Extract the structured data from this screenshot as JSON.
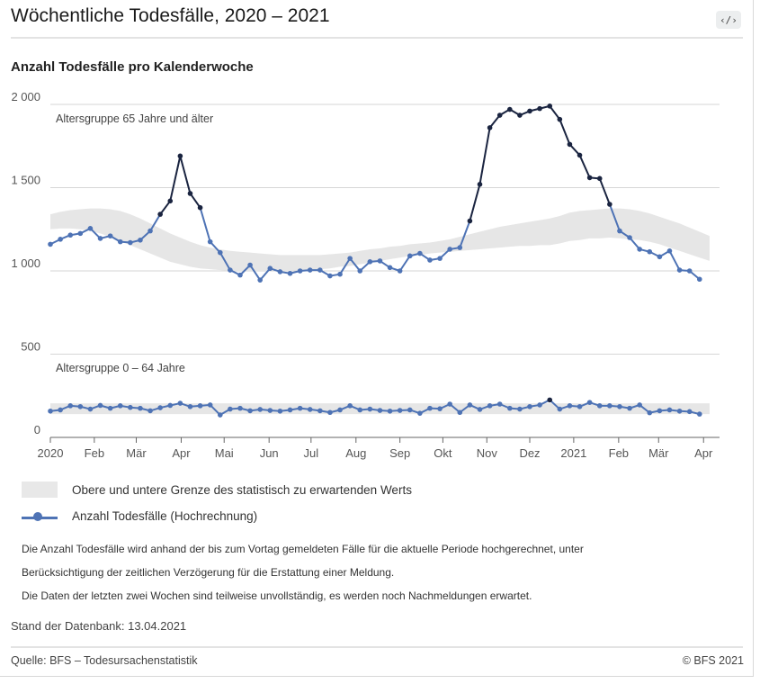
{
  "header": {
    "title": "Wöchentliche Todesfälle, 2020 – 2021",
    "embed_label": "‹/›"
  },
  "subtitle": "Anzahl Todesfälle pro Kalenderwoche",
  "chart_data": {
    "type": "line",
    "ylim": [
      0,
      2000
    ],
    "yticks": [
      0,
      500,
      1000,
      1500,
      2000
    ],
    "ytick_labels": [
      "0",
      "500",
      "1 000",
      "1 500",
      "2 000"
    ],
    "xlim": [
      0,
      67
    ],
    "xticks": [
      {
        "week": 0,
        "label": "2020"
      },
      {
        "week": 4.4,
        "label": "Feb"
      },
      {
        "week": 8.6,
        "label": "Mär"
      },
      {
        "week": 13.1,
        "label": "Apr"
      },
      {
        "week": 17.4,
        "label": "Mai"
      },
      {
        "week": 21.9,
        "label": "Jun"
      },
      {
        "week": 26.1,
        "label": "Jul"
      },
      {
        "week": 30.6,
        "label": "Aug"
      },
      {
        "week": 35,
        "label": "Sep"
      },
      {
        "week": 39.3,
        "label": "Okt"
      },
      {
        "week": 43.7,
        "label": "Nov"
      },
      {
        "week": 48,
        "label": "Dez"
      },
      {
        "week": 52.4,
        "label": "2021"
      },
      {
        "week": 56.9,
        "label": "Feb"
      },
      {
        "week": 60.9,
        "label": "Mär"
      },
      {
        "week": 65.4,
        "label": "Apr"
      }
    ],
    "series_labels": [
      "Altersgruppe 65 Jahre und älter",
      "Altersgruppe 0 – 64 Jahre"
    ],
    "series": [
      {
        "name": "Altersgruppe 65 Jahre und älter",
        "values": [
          1160,
          1190,
          1215,
          1225,
          1255,
          1195,
          1210,
          1175,
          1170,
          1185,
          1240,
          1340,
          1420,
          1690,
          1465,
          1380,
          1175,
          1110,
          1005,
          975,
          1035,
          945,
          1015,
          995,
          985,
          1000,
          1005,
          1005,
          970,
          980,
          1075,
          1000,
          1055,
          1060,
          1020,
          1000,
          1090,
          1105,
          1065,
          1075,
          1130,
          1140,
          1300,
          1520,
          1860,
          1935,
          1970,
          1935,
          1960,
          1975,
          1990,
          1910,
          1760,
          1695,
          1560,
          1555,
          1400,
          1240,
          1200,
          1130,
          1115,
          1085,
          1120,
          1005,
          1000,
          950
        ],
        "exceed": [
          false,
          false,
          false,
          false,
          false,
          false,
          false,
          false,
          false,
          false,
          false,
          true,
          true,
          true,
          true,
          true,
          false,
          false,
          false,
          false,
          false,
          false,
          false,
          false,
          false,
          false,
          false,
          false,
          false,
          false,
          false,
          false,
          false,
          false,
          false,
          false,
          false,
          false,
          false,
          false,
          false,
          false,
          true,
          true,
          true,
          true,
          true,
          true,
          true,
          true,
          true,
          true,
          true,
          true,
          true,
          true,
          true,
          false,
          false,
          false,
          false,
          false,
          false,
          false,
          false,
          false
        ],
        "band_upper": [
          1340,
          1355,
          1365,
          1370,
          1375,
          1375,
          1370,
          1360,
          1340,
          1315,
          1285,
          1255,
          1225,
          1200,
          1175,
          1155,
          1140,
          1130,
          1120,
          1115,
          1110,
          1105,
          1100,
          1095,
          1095,
          1095,
          1095,
          1095,
          1100,
          1105,
          1110,
          1120,
          1130,
          1135,
          1145,
          1150,
          1160,
          1165,
          1170,
          1180,
          1190,
          1205,
          1220,
          1235,
          1250,
          1265,
          1275,
          1285,
          1295,
          1305,
          1315,
          1330,
          1350,
          1360,
          1365,
          1370,
          1375,
          1375,
          1370,
          1360,
          1345,
          1325,
          1305,
          1285,
          1260,
          1235,
          1210
        ],
        "band_lower": [
          1250,
          1255,
          1255,
          1250,
          1240,
          1225,
          1205,
          1180,
          1155,
          1130,
          1105,
          1080,
          1055,
          1040,
          1025,
          1015,
          1010,
          1005,
          1000,
          1000,
          1000,
          1000,
          1000,
          1000,
          1000,
          1005,
          1005,
          1010,
          1015,
          1025,
          1030,
          1040,
          1050,
          1060,
          1070,
          1080,
          1090,
          1095,
          1105,
          1110,
          1115,
          1120,
          1125,
          1130,
          1135,
          1140,
          1145,
          1150,
          1150,
          1155,
          1155,
          1165,
          1180,
          1185,
          1195,
          1195,
          1200,
          1195,
          1190,
          1185,
          1175,
          1160,
          1140,
          1120,
          1100,
          1080,
          1060
        ]
      },
      {
        "name": "Altersgruppe 0 – 64 Jahre",
        "values": [
          158,
          165,
          190,
          185,
          170,
          192,
          175,
          190,
          180,
          175,
          160,
          178,
          192,
          205,
          185,
          190,
          195,
          135,
          170,
          175,
          160,
          168,
          162,
          158,
          165,
          175,
          168,
          160,
          150,
          165,
          190,
          165,
          170,
          162,
          158,
          162,
          165,
          145,
          175,
          172,
          200,
          150,
          195,
          168,
          190,
          200,
          175,
          170,
          185,
          195,
          225,
          170,
          190,
          185,
          210,
          190,
          190,
          185,
          175,
          195,
          148,
          160,
          165,
          158,
          155,
          140
        ],
        "exceed": [
          false,
          false,
          false,
          false,
          false,
          false,
          false,
          false,
          false,
          false,
          false,
          false,
          false,
          false,
          false,
          false,
          false,
          false,
          false,
          false,
          false,
          false,
          false,
          false,
          false,
          false,
          false,
          false,
          false,
          false,
          false,
          false,
          false,
          false,
          false,
          false,
          false,
          false,
          false,
          false,
          false,
          false,
          false,
          false,
          false,
          false,
          false,
          false,
          false,
          false,
          true,
          false,
          false,
          false,
          false,
          false,
          false,
          false,
          false,
          false,
          false,
          false,
          false,
          false,
          false,
          false
        ],
        "band_upper": [
          205,
          205,
          205,
          205,
          205,
          205,
          205,
          205,
          205,
          205,
          205,
          205,
          205,
          205,
          205,
          205,
          205,
          205,
          205,
          205,
          205,
          205,
          205,
          205,
          205,
          205,
          205,
          205,
          205,
          205,
          205,
          205,
          205,
          205,
          205,
          205,
          205,
          205,
          205,
          205,
          205,
          205,
          205,
          205,
          205,
          205,
          205,
          205,
          205,
          205,
          205,
          205,
          205,
          205,
          205,
          205,
          205,
          205,
          205,
          205,
          205,
          205,
          205,
          205,
          205,
          205,
          205
        ],
        "band_lower": [
          140,
          140,
          140,
          140,
          140,
          140,
          140,
          140,
          140,
          140,
          140,
          140,
          140,
          140,
          140,
          140,
          140,
          140,
          140,
          140,
          140,
          140,
          140,
          140,
          140,
          140,
          140,
          140,
          140,
          140,
          140,
          140,
          140,
          140,
          140,
          140,
          140,
          140,
          140,
          140,
          140,
          140,
          140,
          140,
          140,
          140,
          140,
          140,
          140,
          140,
          140,
          140,
          140,
          140,
          140,
          140,
          140,
          140,
          140,
          140,
          140,
          140,
          140,
          140,
          140,
          140,
          140
        ]
      }
    ],
    "colors": {
      "line": "#4e73b5",
      "exceed": "#1a2440",
      "band": "#e6e6e6",
      "grid": "#d6d6d6",
      "axis": "#666666"
    }
  },
  "legend": {
    "band_label": "Obere und untere Grenze des statistisch zu erwartenden Werts",
    "line_label": "Anzahl Todesfälle (Hochrechnung)"
  },
  "notes": [
    "Die Anzahl Todesfälle wird anhand der bis zum Vortag gemeldeten Fälle für die aktuelle Periode hochgerechnet, unter",
    "Berücksichtigung der zeitlichen Verzögerung für die Erstattung einer Meldung.",
    "Die Daten der letzten zwei Wochen sind teilweise unvollständig, es werden noch Nachmeldungen erwartet."
  ],
  "stand": "Stand der Datenbank: 13.04.2021",
  "footer": {
    "source": "Quelle: BFS – Todesursachenstatistik",
    "copyright": "© BFS 2021"
  }
}
